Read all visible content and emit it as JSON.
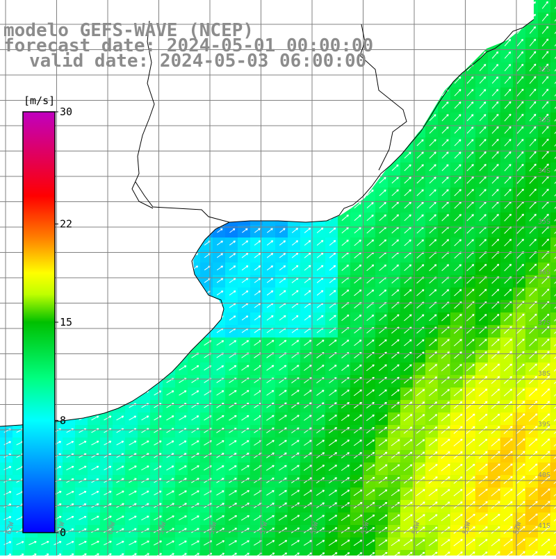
{
  "titles": {
    "line1": "modelo GEFS-WAVE (NCEP)",
    "line2": "forecast date: 2024-05-01 00:00:00",
    "line3": "valid date: 2024-05-03 06:00:00"
  },
  "colorbar": {
    "unit_label": "[m/s]",
    "ticks": [
      {
        "label": "30",
        "value": 30
      },
      {
        "label": "22",
        "value": 22
      },
      {
        "label": "15",
        "value": 15
      },
      {
        "label": "8",
        "value": 8
      },
      {
        "label": "0",
        "value": 0
      }
    ],
    "colors": [
      "#0000ff",
      "#0080ff",
      "#00ffff",
      "#00ff80",
      "#00c000",
      "#c0ff00",
      "#ffff00",
      "#ff8000",
      "#ff0000",
      "#c000c0"
    ]
  },
  "map": {
    "lat_labels": [
      "32S",
      "33S",
      "34S",
      "35S",
      "36S",
      "37S",
      "38S",
      "39S",
      "40S",
      "41S"
    ],
    "lon_labels": [
      "62W",
      "61W",
      "60W",
      "59W",
      "58W",
      "57W",
      "56W",
      "55W",
      "54W",
      "53W",
      "52W",
      "51W"
    ],
    "land_color": "#ffffff",
    "grid_color": "#808080",
    "coast_color": "#000000"
  }
}
